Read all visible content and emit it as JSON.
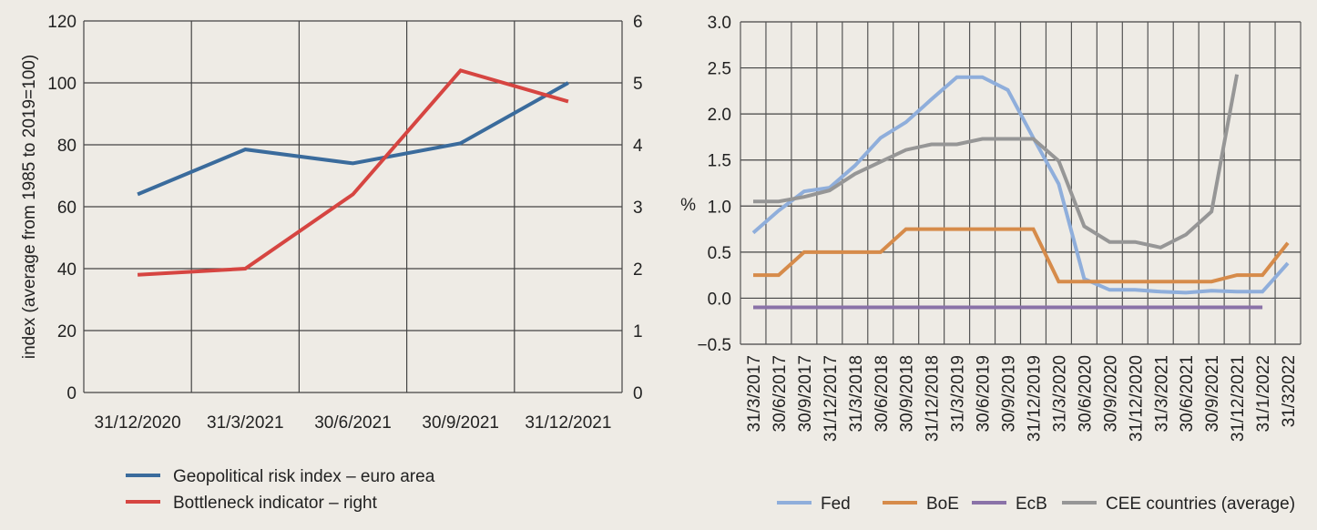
{
  "chart_data": [
    {
      "type": "line",
      "title": "",
      "xlabel": "",
      "ylabel": "index (average from 1985 to 2019=100)",
      "ylabel_right": "",
      "categories": [
        "31/12/2020",
        "31/3/2021",
        "30/6/2021",
        "30/9/2021",
        "31/12/2021"
      ],
      "ylim": [
        0,
        120
      ],
      "ylim_right": [
        0,
        6
      ],
      "yticks": [
        "0",
        "20",
        "40",
        "60",
        "80",
        "100",
        "120"
      ],
      "yticks_right": [
        "0",
        "1",
        "2",
        "3",
        "4",
        "5",
        "6"
      ],
      "grid": true,
      "legend_position": "bottom",
      "series": [
        {
          "name": "Geopolitical risk index – euro area",
          "axis": "left",
          "color": "#3a6b9c",
          "values": [
            64,
            78.5,
            74,
            80.5,
            100
          ]
        },
        {
          "name": "Bottleneck indicator – right",
          "axis": "right",
          "color": "#d64541",
          "values": [
            1.9,
            2.0,
            3.2,
            5.2,
            4.7
          ]
        }
      ]
    },
    {
      "type": "line",
      "title": "",
      "xlabel": "",
      "ylabel": "%",
      "categories": [
        "31/3/2017",
        "30/6/2017",
        "30/9/2017",
        "31/12/2017",
        "31/3/2018",
        "30/6/2018",
        "30/9/2018",
        "31/12/2018",
        "31/3/2019",
        "30/6/2019",
        "30/9/2019",
        "31/12/2019",
        "31/3/2020",
        "30/6/2020",
        "30/9/2020",
        "31/12/2020",
        "31/3/2021",
        "30/6/2021",
        "30/9/2021",
        "31/12/2021",
        "31/1/2022",
        "31/32022"
      ],
      "ylim": [
        -0.5,
        3.0
      ],
      "yticks": [
        "−0.5",
        "0.0",
        "0.5",
        "1.0",
        "1.5",
        "2.0",
        "2.5",
        "3.0"
      ],
      "grid": true,
      "legend_position": "bottom",
      "series": [
        {
          "name": "Fed",
          "color": "#8faedb",
          "values": [
            0.71,
            0.95,
            1.16,
            1.2,
            1.44,
            1.74,
            1.91,
            2.16,
            2.4,
            2.4,
            2.26,
            1.74,
            1.24,
            0.21,
            0.09,
            0.09,
            0.07,
            0.06,
            0.08,
            0.07,
            0.07,
            0.38
          ]
        },
        {
          "name": "BoE",
          "color": "#d68b4a",
          "values": [
            0.25,
            0.25,
            0.5,
            0.5,
            0.5,
            0.5,
            0.75,
            0.75,
            0.75,
            0.75,
            0.75,
            0.75,
            0.18,
            0.18,
            0.18,
            0.18,
            0.18,
            0.18,
            0.18,
            0.25,
            0.25,
            0.6
          ]
        },
        {
          "name": "EcB",
          "color": "#8a72a8",
          "values": [
            -0.1,
            -0.1,
            -0.1,
            -0.1,
            -0.1,
            -0.1,
            -0.1,
            -0.1,
            -0.1,
            -0.1,
            -0.1,
            -0.1,
            -0.1,
            -0.1,
            -0.1,
            -0.1,
            -0.1,
            -0.1,
            -0.1,
            -0.1,
            -0.1,
            null
          ]
        },
        {
          "name": "CEE countries (average)",
          "color": "#969696",
          "values": [
            1.05,
            1.05,
            1.1,
            1.17,
            1.35,
            1.48,
            1.61,
            1.67,
            1.67,
            1.73,
            1.73,
            1.73,
            1.49,
            0.78,
            0.61,
            0.61,
            0.55,
            0.69,
            0.94,
            2.43,
            null,
            null
          ]
        }
      ]
    }
  ]
}
